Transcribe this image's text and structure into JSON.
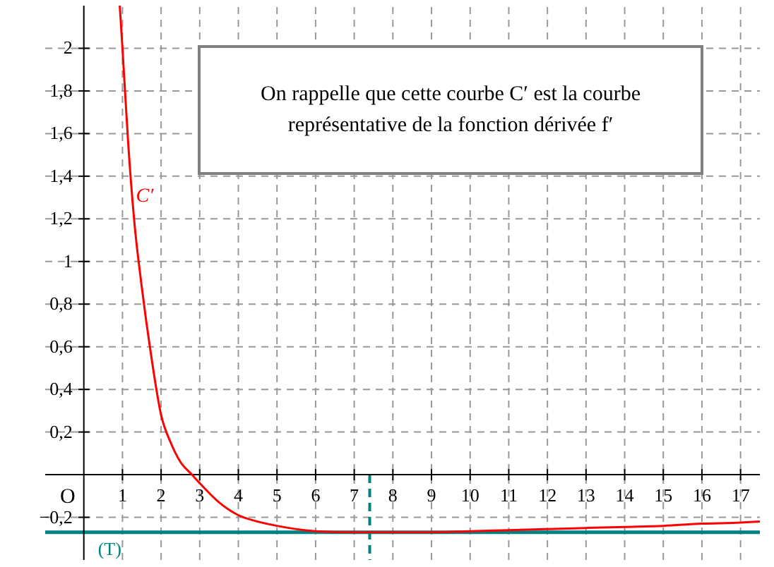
{
  "chart_data": {
    "type": "line",
    "annotations": [
      "On rappelle que cette courbe C′ est la courbe représentative de la fonction dérivée f′",
      "O"
    ],
    "x": [
      0.93,
      1,
      1.15,
      1.3,
      1.5,
      1.75,
      2,
      2.25,
      2.5,
      2.8,
      3,
      3.5,
      4,
      4.5,
      5,
      6,
      7,
      7.4,
      8,
      9,
      10,
      11,
      12,
      13,
      14,
      15,
      16,
      17,
      17.5
    ],
    "series": [
      {
        "name": "C′",
        "color": "#ff0000",
        "values": [
          2.2,
          2.0,
          1.55,
          1.2,
          0.88,
          0.55,
          0.28,
          0.15,
          0.06,
          0,
          -0.04,
          -0.13,
          -0.19,
          -0.22,
          -0.24,
          -0.265,
          -0.27,
          -0.27,
          -0.27,
          -0.27,
          -0.265,
          -0.26,
          -0.255,
          -0.25,
          -0.245,
          -0.24,
          -0.23,
          -0.225,
          -0.22
        ]
      }
    ],
    "xlim": [
      -1,
      17.5
    ],
    "ylim": [
      -0.4,
      2.2
    ],
    "xticks": [
      1,
      2,
      3,
      4,
      5,
      6,
      7,
      8,
      9,
      10,
      11,
      12,
      13,
      14,
      15,
      16,
      17
    ],
    "yticks": [
      {
        "value": -0.2,
        "label": "−0,2"
      },
      {
        "value": 0.2,
        "label": "0,2"
      },
      {
        "value": 0.4,
        "label": "0,4"
      },
      {
        "value": 0.6,
        "label": "0,6"
      },
      {
        "value": 0.8,
        "label": "0,8"
      },
      {
        "value": 1,
        "label": "1"
      },
      {
        "value": 1.2,
        "label": "1,2"
      },
      {
        "value": 1.4,
        "label": "1,4"
      },
      {
        "value": 1.6,
        "label": "1,6"
      },
      {
        "value": 1.8,
        "label": "1,8"
      },
      {
        "value": 2,
        "label": "2"
      }
    ],
    "ref_lines": [
      {
        "axis": "y",
        "value": -0.27,
        "label": "(T)",
        "color": "#008080",
        "line_style": "solid"
      },
      {
        "axis": "x",
        "value": 7.4,
        "label": null,
        "color": "#008080",
        "line_style": "dashed"
      }
    ],
    "grid": true,
    "marker": "none",
    "line_style": "solid"
  }
}
